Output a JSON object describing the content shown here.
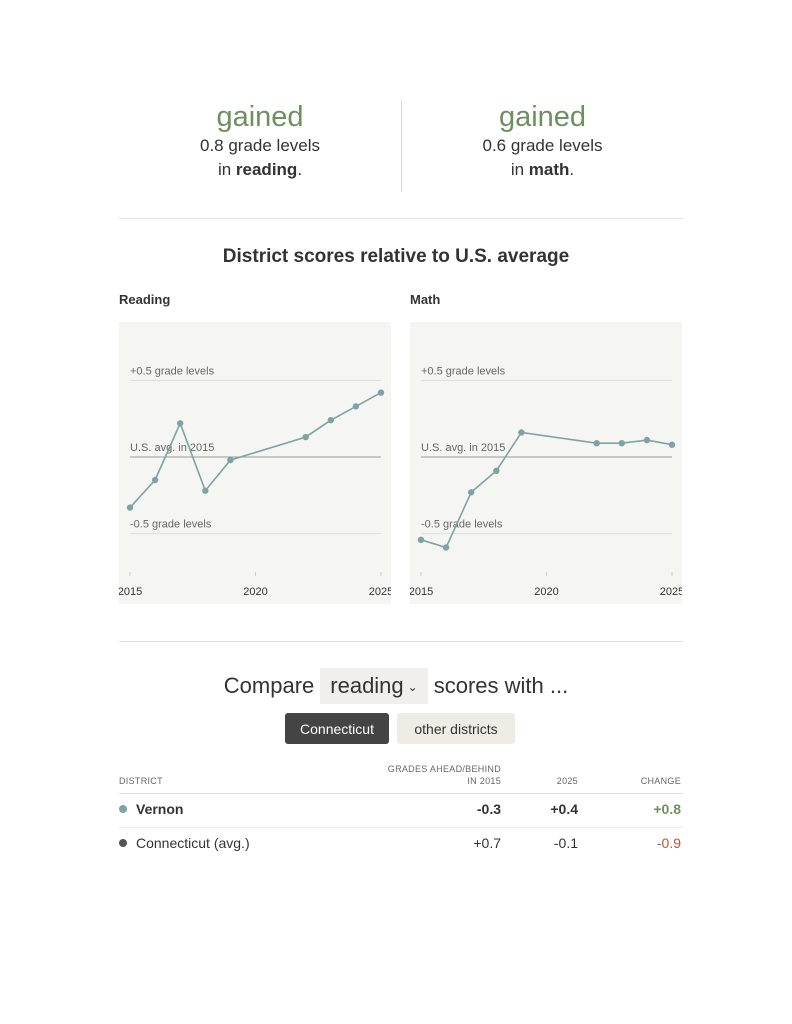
{
  "summary": {
    "reading": {
      "headline": "gained",
      "line1": "0.8 grade levels",
      "in": "in ",
      "subject": "reading",
      "end": "."
    },
    "math": {
      "headline": "gained",
      "line1": "0.6 grade levels",
      "in": "in ",
      "subject": "math",
      "end": "."
    }
  },
  "section_title": "District scores relative to U.S. average",
  "chart_data": [
    {
      "type": "line",
      "title": "Reading",
      "x": [
        2015,
        2016,
        2017,
        2018,
        2019,
        2022,
        2023,
        2024,
        2025
      ],
      "series": [
        {
          "values": [
            -0.33,
            -0.15,
            0.22,
            -0.22,
            -0.02,
            0.13,
            0.24,
            0.33,
            0.42
          ]
        }
      ],
      "reference_lines": [
        {
          "value": 0.5,
          "label": "+0.5 grade levels"
        },
        {
          "value": 0,
          "label": "U.S. avg. in 2015"
        },
        {
          "value": -0.5,
          "label": "-0.5 grade levels"
        }
      ],
      "xticks": [
        2015,
        2020,
        2025
      ],
      "xlim": [
        2015,
        2025
      ],
      "ylim": [
        -0.75,
        0.75
      ],
      "line_color": "#7fa3a3"
    },
    {
      "type": "line",
      "title": "Math",
      "x": [
        2015,
        2016,
        2017,
        2018,
        2019,
        2022,
        2023,
        2024,
        2025
      ],
      "series": [
        {
          "values": [
            -0.54,
            -0.59,
            -0.23,
            -0.09,
            0.16,
            0.09,
            0.09,
            0.11,
            0.08
          ]
        }
      ],
      "reference_lines": [
        {
          "value": 0.5,
          "label": "+0.5 grade levels"
        },
        {
          "value": 0,
          "label": "U.S. avg. in 2015"
        },
        {
          "value": -0.5,
          "label": "-0.5 grade levels"
        }
      ],
      "xticks": [
        2015,
        2020,
        2025
      ],
      "xlim": [
        2015,
        2025
      ],
      "ylim": [
        -0.75,
        0.75
      ],
      "line_color": "#7fa3a3"
    }
  ],
  "compare": {
    "prefix": "Compare",
    "selected_subject": "reading",
    "suffix": "scores with ...",
    "toggle_active": "Connecticut",
    "toggle_inactive": "other districts"
  },
  "table": {
    "headers": {
      "district": "DISTRICT",
      "grades_line1": "GRADES AHEAD/BEHIND",
      "grades_line2": "IN 2015",
      "year": "2025",
      "change": "CHANGE"
    },
    "rows": [
      {
        "name": "Vernon",
        "v2015": "-0.3",
        "v2025": "+0.4",
        "change": "+0.8",
        "dot_color": "#7fa3a3",
        "change_color": "#6f8f5d",
        "bold": true
      },
      {
        "name": "Connecticut (avg.)",
        "v2015": "+0.7",
        "v2025": "-0.1",
        "change": "-0.9",
        "dot_color": "#555555",
        "change_color": "#b3543f",
        "bold": false
      }
    ]
  }
}
